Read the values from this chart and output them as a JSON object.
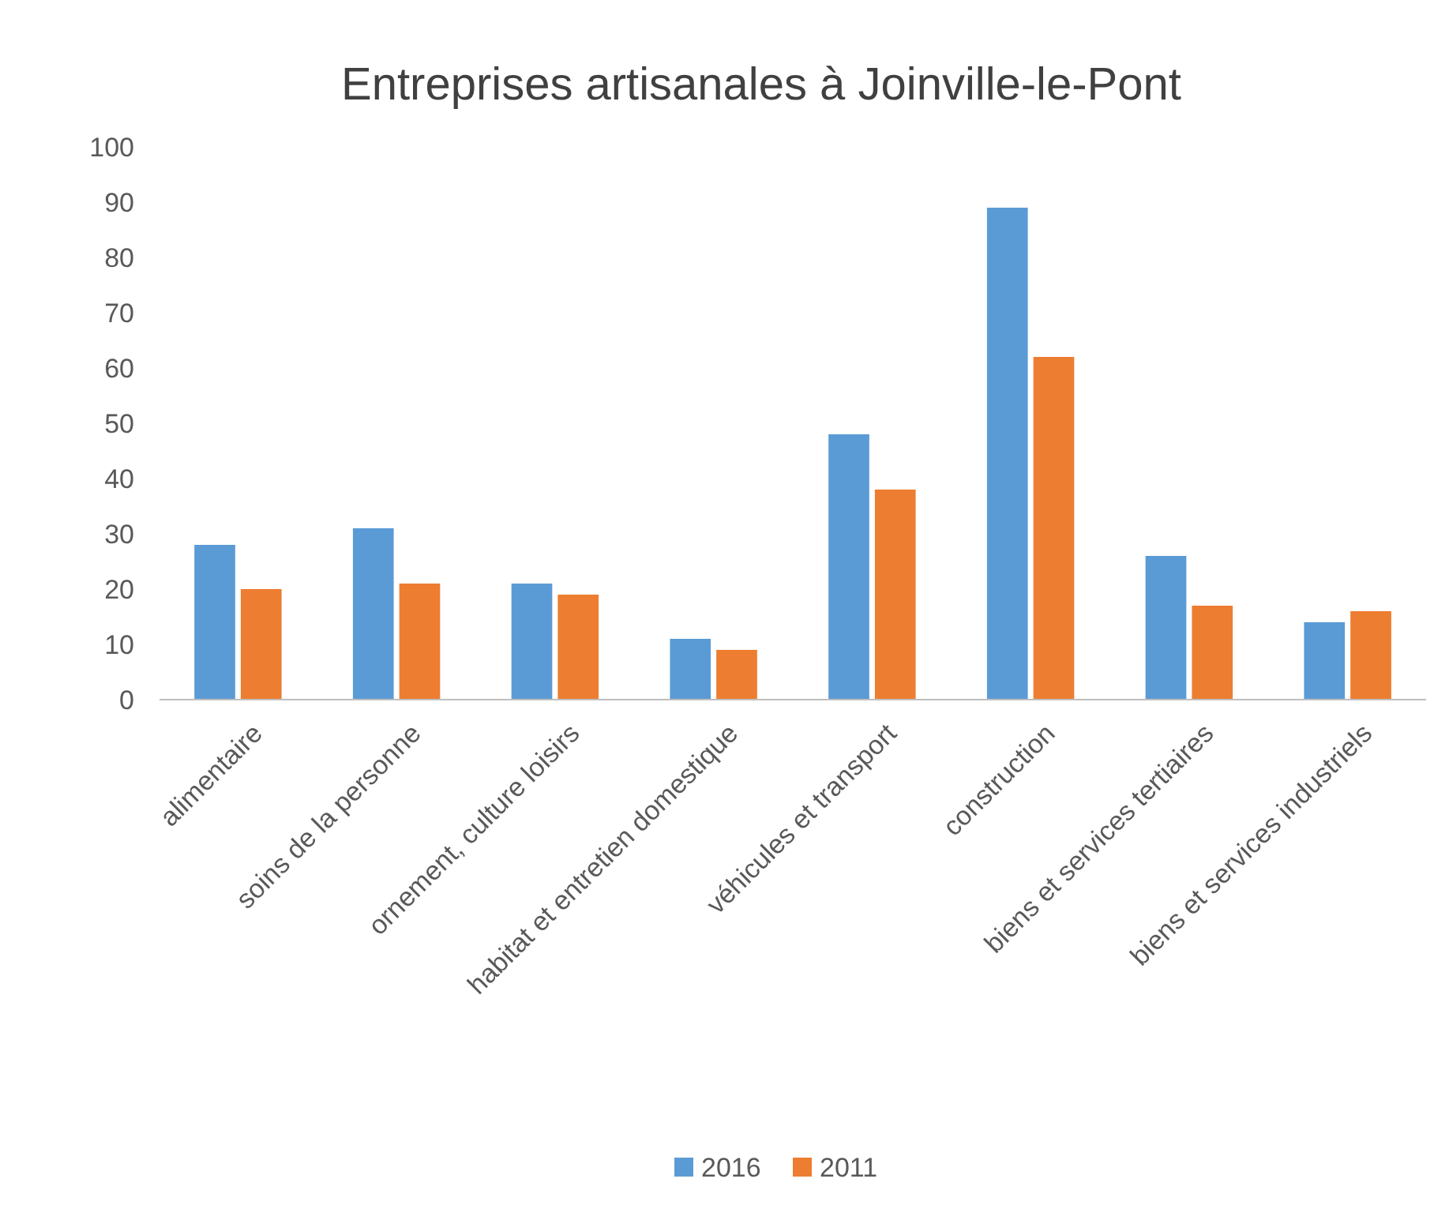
{
  "chart_data": {
    "type": "bar",
    "title": "Entreprises artisanales à Joinville-le-Pont",
    "categories": [
      "alimentaire",
      "soins de la personne",
      "ornement, culture loisirs",
      "habitat et entretien domestique",
      "véhicules et transport",
      "construction",
      "biens et services tertiaires",
      "biens et services industriels"
    ],
    "series": [
      {
        "name": "2016",
        "color": "#5b9bd5",
        "values": [
          28,
          31,
          21,
          11,
          48,
          89,
          26,
          14
        ]
      },
      {
        "name": "2011",
        "color": "#ed7d31",
        "values": [
          20,
          21,
          19,
          9,
          38,
          62,
          17,
          16
        ]
      }
    ],
    "ylim": [
      0,
      100
    ],
    "yticks": [
      0,
      10,
      20,
      30,
      40,
      50,
      60,
      70,
      80,
      90,
      100
    ],
    "grid": false,
    "legend": "bottom"
  }
}
